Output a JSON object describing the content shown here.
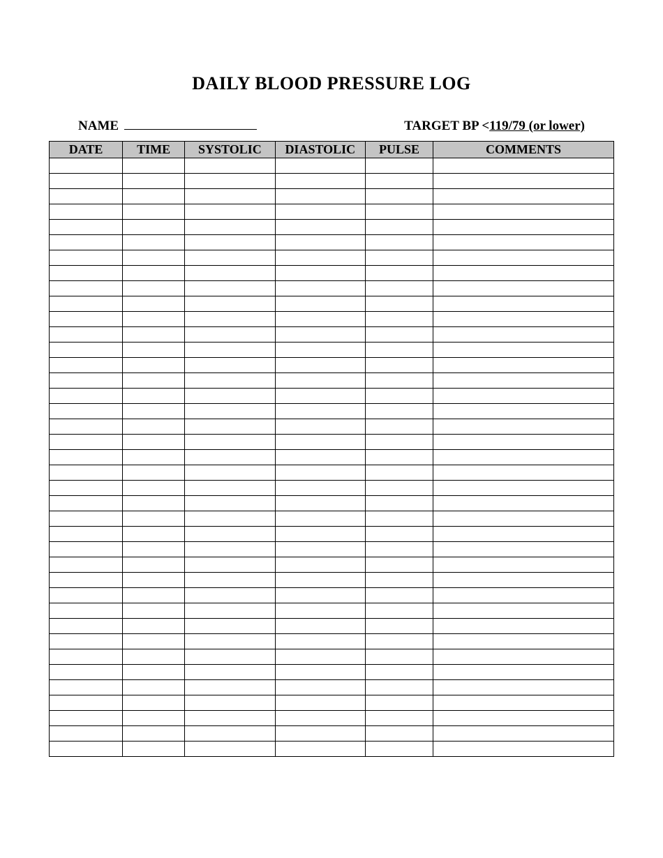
{
  "title": "DAILY BLOOD PRESSURE LOG",
  "name_label": "NAME",
  "name_value": "",
  "target_label": "TARGET BP  <",
  "target_value": "119/79 (or lower)",
  "table": {
    "header_bg": "#c4c4c4",
    "columns": [
      {
        "label": "DATE",
        "width_pct": 13
      },
      {
        "label": "TIME",
        "width_pct": 11
      },
      {
        "label": "SYSTOLIC",
        "width_pct": 16
      },
      {
        "label": "DIASTOLIC",
        "width_pct": 16
      },
      {
        "label": "PULSE",
        "width_pct": 12
      },
      {
        "label": "COMMENTS",
        "width_pct": 32
      }
    ],
    "row_count": 39
  }
}
